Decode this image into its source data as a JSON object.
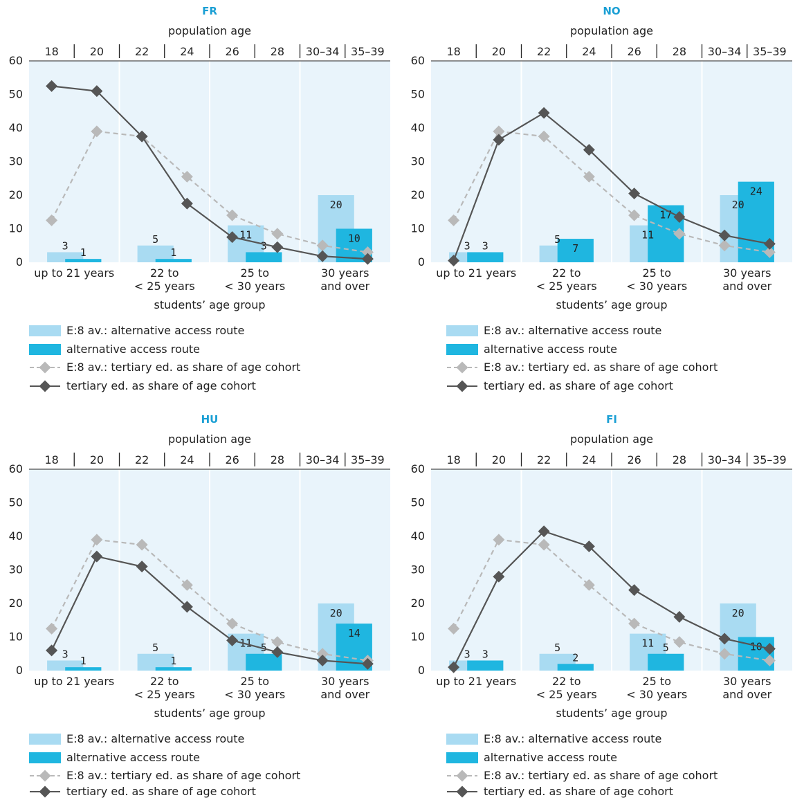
{
  "top_axis_title": "population age",
  "bottom_axis_title": "students’ age group",
  "top_ticks": [
    "18",
    "20",
    "22",
    "24",
    "26",
    "28",
    "30–34",
    "35–39"
  ],
  "group_labels": [
    [
      "up to 21 years"
    ],
    [
      "22 to",
      "< 25 years"
    ],
    [
      "25 to",
      "< 30 years"
    ],
    [
      "30 years",
      "and over"
    ]
  ],
  "y_ticks": [
    "0",
    "10",
    "20",
    "30",
    "40",
    "50",
    "60"
  ],
  "legend": {
    "avg_bar": "E:8 av.: alternative access route",
    "country_bar": "alternative access route",
    "avg_line": "E:8 av.: tertiary ed. as share of age cohort",
    "country_line": "tertiary ed. as share of age cohort"
  },
  "colors": {
    "avg_bar": "#a9dbf2",
    "country_bar": "#1fb6e0",
    "avg_line": "#b9b9b9",
    "country_line": "#555555",
    "plot_bg": "#e9f4fb",
    "title": "#1a9fd4"
  },
  "chart_data": [
    {
      "type": "bar",
      "title": "FR",
      "ylim": [
        0,
        60
      ],
      "categories": [
        "up to 21 years",
        "22 to < 25 years",
        "25 to < 30 years",
        "30 years and over"
      ],
      "series": [
        {
          "name": "E:8 av.: alternative access route",
          "values": [
            3,
            5,
            11,
            20
          ]
        },
        {
          "name": "alternative access route",
          "values": [
            1,
            1,
            3,
            10
          ]
        }
      ],
      "line_x": [
        "18",
        "20",
        "22",
        "24",
        "26",
        "28",
        "30–34",
        "35–39"
      ],
      "lines": [
        {
          "name": "E:8 av.: tertiary ed. as share of age cohort",
          "values": [
            12.5,
            39,
            37.5,
            25.5,
            14,
            8.5,
            5,
            3
          ]
        },
        {
          "name": "tertiary ed. as share of age cohort",
          "values": [
            52.5,
            51,
            37.5,
            17.5,
            7.5,
            4.5,
            1.8,
            1
          ]
        }
      ]
    },
    {
      "type": "bar",
      "title": "NO",
      "ylim": [
        0,
        60
      ],
      "categories": [
        "up to 21 years",
        "22 to < 25 years",
        "25 to < 30 years",
        "30 years and over"
      ],
      "series": [
        {
          "name": "E:8 av.: alternative access route",
          "values": [
            3,
            5,
            11,
            20
          ]
        },
        {
          "name": "alternative access route",
          "values": [
            3,
            7,
            17,
            24
          ]
        }
      ],
      "line_x": [
        "18",
        "20",
        "22",
        "24",
        "26",
        "28",
        "30–34",
        "35–39"
      ],
      "lines": [
        {
          "name": "E:8 av.: tertiary ed. as share of age cohort",
          "values": [
            12.5,
            39,
            37.5,
            25.5,
            14,
            8.5,
            5,
            3
          ]
        },
        {
          "name": "tertiary ed. as share of age cohort",
          "values": [
            0.5,
            36.5,
            44.5,
            33.5,
            20.5,
            13.5,
            8,
            5.5
          ]
        }
      ]
    },
    {
      "type": "bar",
      "title": "HU",
      "ylim": [
        0,
        60
      ],
      "categories": [
        "up to 21 years",
        "22 to < 25 years",
        "25 to < 30 years",
        "30 years and over"
      ],
      "series": [
        {
          "name": "E:8 av.: alternative access route",
          "values": [
            3,
            5,
            11,
            20
          ]
        },
        {
          "name": "alternative access route",
          "values": [
            1,
            1,
            5,
            14
          ]
        }
      ],
      "line_x": [
        "18",
        "20",
        "22",
        "24",
        "26",
        "28",
        "30–34",
        "35–39"
      ],
      "lines": [
        {
          "name": "E:8 av.: tertiary ed. as share of age cohort",
          "values": [
            12.5,
            39,
            37.5,
            25.5,
            14,
            8.5,
            5,
            3
          ]
        },
        {
          "name": "tertiary ed. as share of age cohort",
          "values": [
            6,
            34,
            31,
            19,
            9,
            5.5,
            3,
            2
          ]
        }
      ]
    },
    {
      "type": "bar",
      "title": "FI",
      "ylim": [
        0,
        60
      ],
      "categories": [
        "up to 21 years",
        "22 to < 25 years",
        "25 to < 30 years",
        "30 years and over"
      ],
      "series": [
        {
          "name": "E:8 av.: alternative access route",
          "values": [
            3,
            5,
            11,
            20
          ]
        },
        {
          "name": "alternative access route",
          "values": [
            3,
            2,
            5,
            10
          ]
        }
      ],
      "line_x": [
        "18",
        "20",
        "22",
        "24",
        "26",
        "28",
        "30–34",
        "35–39"
      ],
      "lines": [
        {
          "name": "E:8 av.: tertiary ed. as share of age cohort",
          "values": [
            12.5,
            39,
            37.5,
            25.5,
            14,
            8.5,
            5,
            3
          ]
        },
        {
          "name": "tertiary ed. as share of age cohort",
          "values": [
            1,
            28,
            41.5,
            37,
            24,
            16,
            9.5,
            6.5
          ]
        }
      ]
    }
  ]
}
